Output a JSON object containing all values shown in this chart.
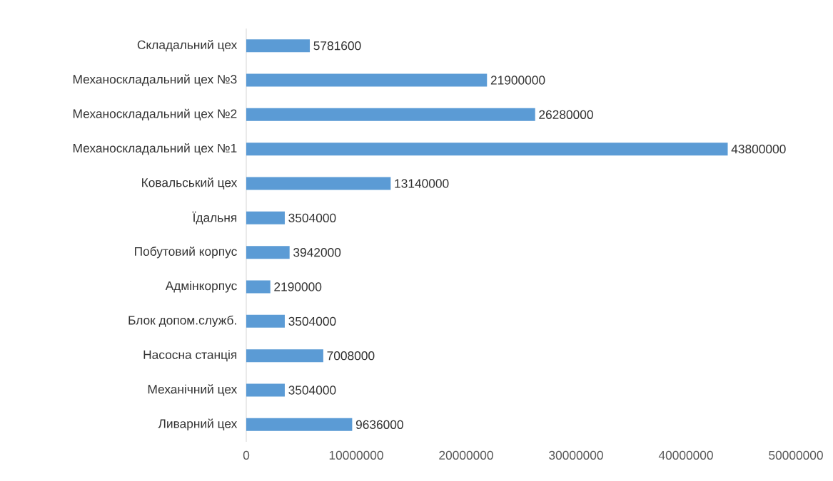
{
  "chart_data": {
    "type": "bar",
    "orientation": "horizontal",
    "categories": [
      "Складальний цех",
      "Механоскладальний цех №3",
      "Механоскладальний цех №2",
      "Механоскладальний цех №1",
      "Ковальський цех",
      "Їдальня",
      "Побутовий корпус",
      "Адмінкорпус",
      "Блок допом.служб.",
      "Насосна станція",
      "Механічний цех",
      "Ливарний цех"
    ],
    "values": [
      5781600,
      21900000,
      26280000,
      43800000,
      13140000,
      3504000,
      3942000,
      2190000,
      3504000,
      7008000,
      3504000,
      9636000
    ],
    "color": "#5b9bd5",
    "data_labels": true,
    "grid": false,
    "xlim": [
      0,
      50000000
    ],
    "xticks": [
      0,
      10000000,
      20000000,
      30000000,
      40000000,
      50000000
    ]
  }
}
